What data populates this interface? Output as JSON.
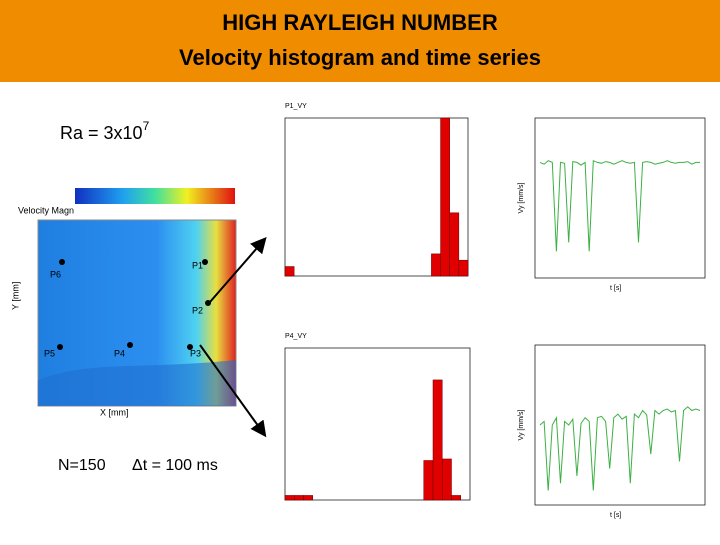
{
  "header": {
    "line1": "HIGH RAYLEIGH NUMBER",
    "line2": "Velocity histogram and time series"
  },
  "annotations": {
    "rayleigh": "Ra = 3x10",
    "rayleigh_exp": "7",
    "n": "N=150",
    "dt": "Δt = 100 ms"
  },
  "contour": {
    "title": "Velocity Magn",
    "x_label": "X [mm]",
    "y_label": "Y [mm]",
    "points": [
      "P1",
      "P2",
      "P3",
      "P4",
      "P5",
      "P6"
    ]
  },
  "histograms": [
    {
      "title": "P1_VY",
      "ylim": [
        0,
        50
      ],
      "bins": [
        -4.5,
        -4.25,
        -4.0,
        -3.75,
        -3.5,
        -3.25,
        -3.0,
        -2.75,
        -2.5,
        -2.25,
        -2.0,
        -1.75,
        -1.5,
        -1.25,
        -1.0,
        -0.75,
        -0.5,
        -0.25,
        0.0,
        0.25,
        0.5
      ],
      "counts": [
        3,
        0,
        0,
        0,
        0,
        0,
        0,
        0,
        0,
        0,
        0,
        0,
        0,
        0,
        0,
        0,
        7,
        50,
        20,
        5
      ],
      "color": "#e00000"
    },
    {
      "title": "P4_VY",
      "ylim": [
        0,
        100
      ],
      "bins": [
        -4.5,
        -4.25,
        -4.0,
        -3.75,
        -3.5,
        -3.25,
        -3.0,
        -2.75,
        -2.5,
        -2.25,
        -2.0,
        -1.75,
        -1.5,
        -1.25,
        -1.0,
        -0.75,
        -0.5,
        -0.25,
        0.0,
        0.25,
        0.5
      ],
      "counts": [
        3,
        3,
        3,
        0,
        0,
        0,
        0,
        0,
        0,
        0,
        0,
        0,
        0,
        0,
        0,
        26,
        79,
        27,
        3,
        0
      ],
      "color": "#e00000"
    }
  ],
  "time_series": [
    {
      "x_label": "t [s]",
      "y_label": "Vy [mm/s]",
      "ylim": [
        -1.6,
        0.2
      ],
      "color": "#3cb043",
      "values": [
        -0.3,
        -0.32,
        -0.28,
        -0.3,
        -1.3,
        -0.3,
        -0.31,
        -1.2,
        -0.29,
        -0.3,
        -0.33,
        -0.3,
        -1.3,
        -0.28,
        -0.3,
        -0.31,
        -0.29,
        -0.3,
        -0.32,
        -0.3,
        -0.28,
        -0.3,
        -0.31,
        -0.3,
        -1.2,
        -0.3,
        -0.29,
        -0.3,
        -0.32,
        -0.31,
        -0.3,
        -0.28,
        -0.3,
        -0.31,
        -0.3,
        -0.3,
        -0.29,
        -0.32,
        -0.3,
        -0.3
      ]
    },
    {
      "x_label": "t [s]",
      "y_label": "Vy [mm/s]",
      "ylim": [
        -1.6,
        0.6
      ],
      "color": "#3cb043",
      "values": [
        -0.5,
        -0.45,
        -1.4,
        -0.5,
        -0.4,
        -1.3,
        -0.45,
        -0.5,
        -0.42,
        -1.2,
        -0.48,
        -0.4,
        -0.45,
        -1.4,
        -0.4,
        -0.38,
        -0.45,
        -1.1,
        -0.4,
        -0.35,
        -0.42,
        -0.38,
        -1.3,
        -0.35,
        -0.4,
        -0.3,
        -0.36,
        -0.9,
        -0.3,
        -0.35,
        -0.3,
        -0.28,
        -0.32,
        -0.3,
        -1.0,
        -0.3,
        -0.25,
        -0.3,
        -0.28,
        -0.3
      ]
    }
  ]
}
